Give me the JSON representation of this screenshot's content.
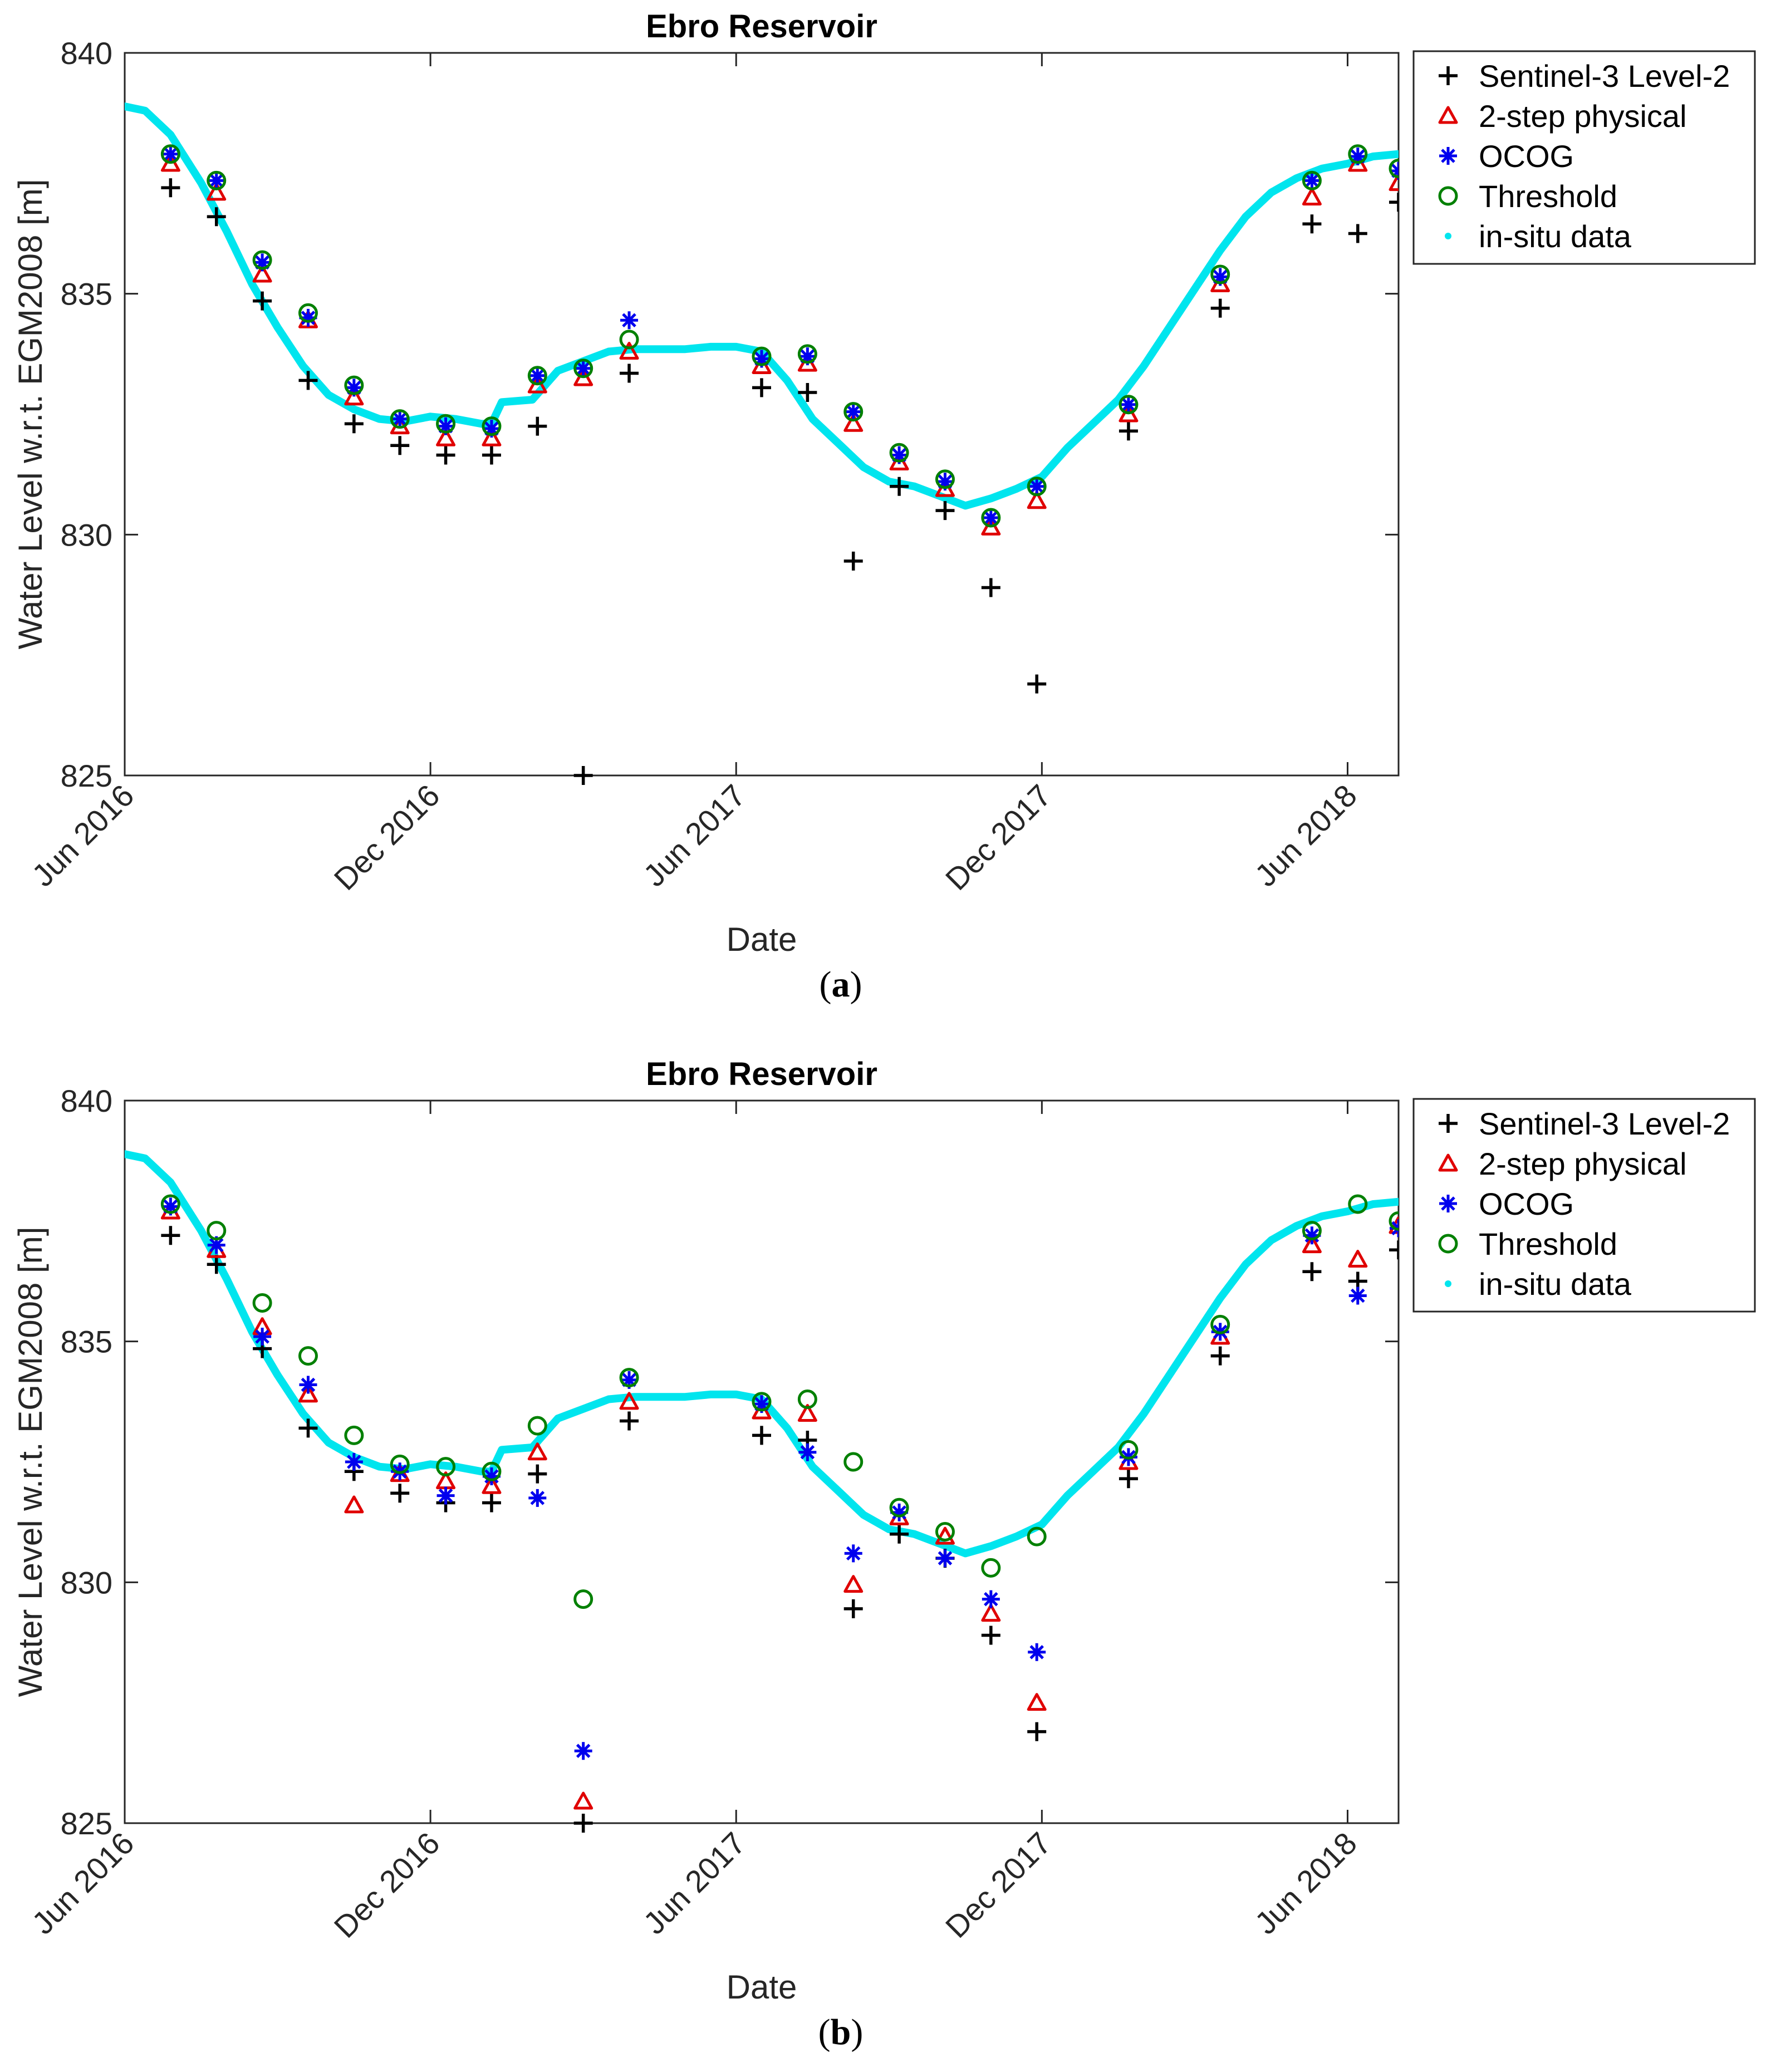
{
  "chart_data": [
    {
      "panel": "a",
      "caption": "(a)",
      "caption_letter": "a",
      "type": "scatter",
      "title": "Ebro Reservoir",
      "xlabel": "Date",
      "ylabel": "Water Level w.r.t. EGM2008 [m]",
      "xlim": [
        0,
        25
      ],
      "ylim": [
        825,
        840
      ],
      "xticks": [
        {
          "x": 0,
          "label": "Jun 2016"
        },
        {
          "x": 6,
          "label": "Dec 2016"
        },
        {
          "x": 12,
          "label": "Jun 2017"
        },
        {
          "x": 18,
          "label": "Dec 2017"
        },
        {
          "x": 24,
          "label": "Jun 2018"
        }
      ],
      "yticks": [
        825,
        830,
        835,
        840
      ],
      "legend_position": "outside-right-top",
      "insitu": {
        "name": "in-situ data",
        "color": "#00e5ee",
        "x": [
          -0.05,
          0.4,
          0.9,
          1.5,
          2.0,
          2.5,
          3.0,
          3.5,
          4.0,
          4.5,
          5.0,
          5.5,
          6.0,
          6.5,
          7.0,
          7.2,
          7.4,
          8.0,
          8.5,
          9.0,
          9.5,
          10.0,
          10.5,
          11.0,
          11.5,
          12.0,
          12.5,
          13.0,
          13.5,
          14.0,
          14.5,
          15.0,
          15.5,
          16.0,
          16.5,
          17.0,
          17.5,
          18.0,
          18.5,
          19.0,
          19.5,
          20.0,
          20.5,
          21.0,
          21.5,
          22.0,
          22.5,
          23.0,
          23.5,
          24.0,
          24.5,
          25.0
        ],
        "y": [
          838.9,
          838.8,
          838.3,
          837.3,
          836.3,
          835.2,
          834.3,
          833.5,
          832.9,
          832.6,
          832.4,
          832.35,
          832.45,
          832.4,
          832.3,
          832.3,
          832.75,
          832.8,
          833.4,
          833.6,
          833.8,
          833.85,
          833.85,
          833.85,
          833.9,
          833.9,
          833.8,
          833.2,
          832.4,
          831.9,
          831.4,
          831.1,
          831.0,
          830.8,
          830.6,
          830.75,
          830.95,
          831.2,
          831.8,
          832.3,
          832.8,
          833.5,
          834.3,
          835.1,
          835.9,
          836.6,
          837.1,
          837.4,
          837.6,
          837.7,
          837.85,
          837.9
        ]
      },
      "series": [
        {
          "name": "Sentinel-3 Level-2",
          "marker": "plus",
          "color": "#000000",
          "x": [
            0.9,
            1.8,
            2.7,
            3.6,
            4.5,
            5.4,
            6.3,
            7.2,
            8.1,
            9.0,
            9.9,
            12.5,
            13.4,
            14.3,
            15.2,
            16.1,
            17.0,
            17.9,
            19.7,
            21.5,
            23.3,
            24.2,
            25.0
          ],
          "y": [
            837.2,
            836.6,
            834.85,
            833.2,
            832.3,
            831.85,
            831.65,
            831.65,
            832.25,
            825.0,
            833.35,
            833.05,
            832.95,
            829.45,
            831.0,
            830.5,
            828.9,
            826.9,
            832.15,
            834.7,
            836.45,
            836.25,
            836.9
          ]
        },
        {
          "name": "2-step physical",
          "marker": "triangle",
          "color": "#e00000",
          "x": [
            0.9,
            1.8,
            2.7,
            3.6,
            4.5,
            5.4,
            6.3,
            7.2,
            8.1,
            9.0,
            9.9,
            12.5,
            13.4,
            14.3,
            15.2,
            16.1,
            17.0,
            17.9,
            19.7,
            21.5,
            23.3,
            24.2,
            25.0
          ],
          "y": [
            837.7,
            837.1,
            835.4,
            834.45,
            832.85,
            832.25,
            832.0,
            832.0,
            833.1,
            833.25,
            833.8,
            833.5,
            833.55,
            832.3,
            831.5,
            830.95,
            830.15,
            830.7,
            832.5,
            835.2,
            837.0,
            837.7,
            837.3
          ]
        },
        {
          "name": "OCOG",
          "marker": "asterisk",
          "color": "#0000ee",
          "x": [
            0.9,
            1.8,
            2.7,
            3.6,
            4.5,
            5.4,
            6.3,
            7.2,
            8.1,
            9.0,
            9.9,
            12.5,
            13.4,
            14.3,
            15.2,
            16.1,
            17.0,
            17.9,
            19.7,
            21.5,
            23.3,
            24.2,
            25.0
          ],
          "y": [
            837.9,
            837.35,
            835.65,
            834.5,
            833.05,
            832.4,
            832.25,
            832.2,
            833.3,
            833.45,
            834.45,
            833.65,
            833.7,
            832.55,
            831.65,
            831.1,
            830.35,
            831.0,
            832.7,
            835.35,
            837.35,
            837.85,
            837.55
          ]
        },
        {
          "name": "Threshold",
          "marker": "circle",
          "color": "#008000",
          "x": [
            0.9,
            1.8,
            2.7,
            3.6,
            4.5,
            5.4,
            6.3,
            7.2,
            8.1,
            9.0,
            9.9,
            12.5,
            13.4,
            14.3,
            15.2,
            16.1,
            17.0,
            17.9,
            19.7,
            21.5,
            23.3,
            24.2,
            25.0
          ],
          "y": [
            837.9,
            837.35,
            835.7,
            834.6,
            833.1,
            832.4,
            832.3,
            832.25,
            833.3,
            833.45,
            834.05,
            833.7,
            833.75,
            832.55,
            831.7,
            831.15,
            830.35,
            831.0,
            832.7,
            835.4,
            837.35,
            837.9,
            837.6
          ]
        }
      ]
    },
    {
      "panel": "b",
      "caption": "(b)",
      "caption_letter": "b",
      "type": "scatter",
      "title": "Ebro Reservoir",
      "xlabel": "Date",
      "ylabel": "Water Level w.r.t. EGM2008 [m]",
      "xlim": [
        0,
        25
      ],
      "ylim": [
        825,
        840
      ],
      "xticks": [
        {
          "x": 0,
          "label": "Jun 2016"
        },
        {
          "x": 6,
          "label": "Dec 2016"
        },
        {
          "x": 12,
          "label": "Jun 2017"
        },
        {
          "x": 18,
          "label": "Dec 2017"
        },
        {
          "x": 24,
          "label": "Jun 2018"
        }
      ],
      "yticks": [
        825,
        830,
        835,
        840
      ],
      "legend_position": "outside-right-top",
      "insitu": {
        "name": "in-situ data",
        "color": "#00e5ee",
        "x": [
          -0.05,
          0.4,
          0.9,
          1.5,
          2.0,
          2.5,
          3.0,
          3.5,
          4.0,
          4.5,
          5.0,
          5.5,
          6.0,
          6.5,
          7.0,
          7.2,
          7.4,
          8.0,
          8.5,
          9.0,
          9.5,
          10.0,
          10.5,
          11.0,
          11.5,
          12.0,
          12.5,
          13.0,
          13.5,
          14.0,
          14.5,
          15.0,
          15.5,
          16.0,
          16.5,
          17.0,
          17.5,
          18.0,
          18.5,
          19.0,
          19.5,
          20.0,
          20.5,
          21.0,
          21.5,
          22.0,
          22.5,
          23.0,
          23.5,
          24.0,
          24.5,
          25.0
        ],
        "y": [
          838.9,
          838.8,
          838.3,
          837.3,
          836.3,
          835.2,
          834.3,
          833.5,
          832.9,
          832.6,
          832.4,
          832.35,
          832.45,
          832.4,
          832.3,
          832.3,
          832.75,
          832.8,
          833.4,
          833.6,
          833.8,
          833.85,
          833.85,
          833.85,
          833.9,
          833.9,
          833.8,
          833.2,
          832.4,
          831.9,
          831.4,
          831.1,
          831.0,
          830.8,
          830.6,
          830.75,
          830.95,
          831.2,
          831.8,
          832.3,
          832.8,
          833.5,
          834.3,
          835.1,
          835.9,
          836.6,
          837.1,
          837.4,
          837.6,
          837.7,
          837.85,
          837.9
        ]
      },
      "series": [
        {
          "name": "Sentinel-3 Level-2",
          "marker": "plus",
          "color": "#000000",
          "x": [
            0.9,
            1.8,
            2.7,
            3.6,
            4.5,
            5.4,
            6.3,
            7.2,
            8.1,
            9.0,
            9.9,
            12.5,
            13.4,
            14.3,
            15.2,
            16.1,
            17.0,
            17.9,
            19.7,
            21.5,
            23.3,
            24.2,
            25.0
          ],
          "y": [
            837.2,
            836.6,
            834.85,
            833.2,
            832.3,
            831.85,
            831.65,
            831.65,
            832.25,
            825.0,
            833.35,
            833.05,
            832.95,
            829.45,
            831.0,
            830.5,
            828.9,
            826.9,
            832.15,
            834.7,
            836.45,
            836.25,
            836.9
          ]
        },
        {
          "name": "2-step physical",
          "marker": "triangle",
          "color": "#e00000",
          "x": [
            0.9,
            1.8,
            2.7,
            3.6,
            4.5,
            5.4,
            6.3,
            7.2,
            8.1,
            9.0,
            9.9,
            12.5,
            13.4,
            14.3,
            15.2,
            16.1,
            17.0,
            17.9,
            19.7,
            21.5,
            23.3,
            24.2,
            25.0
          ],
          "y": [
            837.7,
            836.9,
            835.3,
            833.9,
            831.6,
            832.25,
            832.1,
            832.0,
            832.7,
            825.45,
            833.75,
            833.55,
            833.5,
            829.95,
            831.35,
            830.95,
            829.35,
            827.5,
            832.5,
            835.1,
            837.0,
            836.7,
            837.4
          ]
        },
        {
          "name": "OCOG",
          "marker": "asterisk",
          "color": "#0000ee",
          "x": [
            0.9,
            1.8,
            2.7,
            3.6,
            4.5,
            5.4,
            6.3,
            7.2,
            8.1,
            9.0,
            9.9,
            12.5,
            13.4,
            14.3,
            15.2,
            16.1,
            17.0,
            17.9,
            19.7,
            21.5,
            23.3,
            24.2,
            25.0
          ],
          "y": [
            837.8,
            837.0,
            835.1,
            834.1,
            832.5,
            832.3,
            831.8,
            832.2,
            831.75,
            826.5,
            834.2,
            833.7,
            832.7,
            830.6,
            831.45,
            830.5,
            829.65,
            828.55,
            832.6,
            835.2,
            837.2,
            835.95,
            837.35
          ]
        },
        {
          "name": "Threshold",
          "marker": "circle",
          "color": "#008000",
          "x": [
            0.9,
            1.8,
            2.7,
            3.6,
            4.5,
            5.4,
            6.3,
            7.2,
            8.1,
            9.0,
            9.9,
            12.5,
            13.4,
            14.3,
            15.2,
            16.1,
            17.0,
            17.9,
            19.7,
            21.5,
            23.3,
            24.2,
            25.0
          ],
          "y": [
            837.85,
            837.3,
            835.8,
            834.7,
            833.05,
            832.45,
            832.4,
            832.3,
            833.25,
            829.65,
            834.25,
            833.75,
            833.8,
            832.5,
            831.55,
            831.05,
            830.3,
            830.95,
            832.75,
            835.35,
            837.3,
            837.85,
            837.5
          ]
        }
      ]
    }
  ]
}
